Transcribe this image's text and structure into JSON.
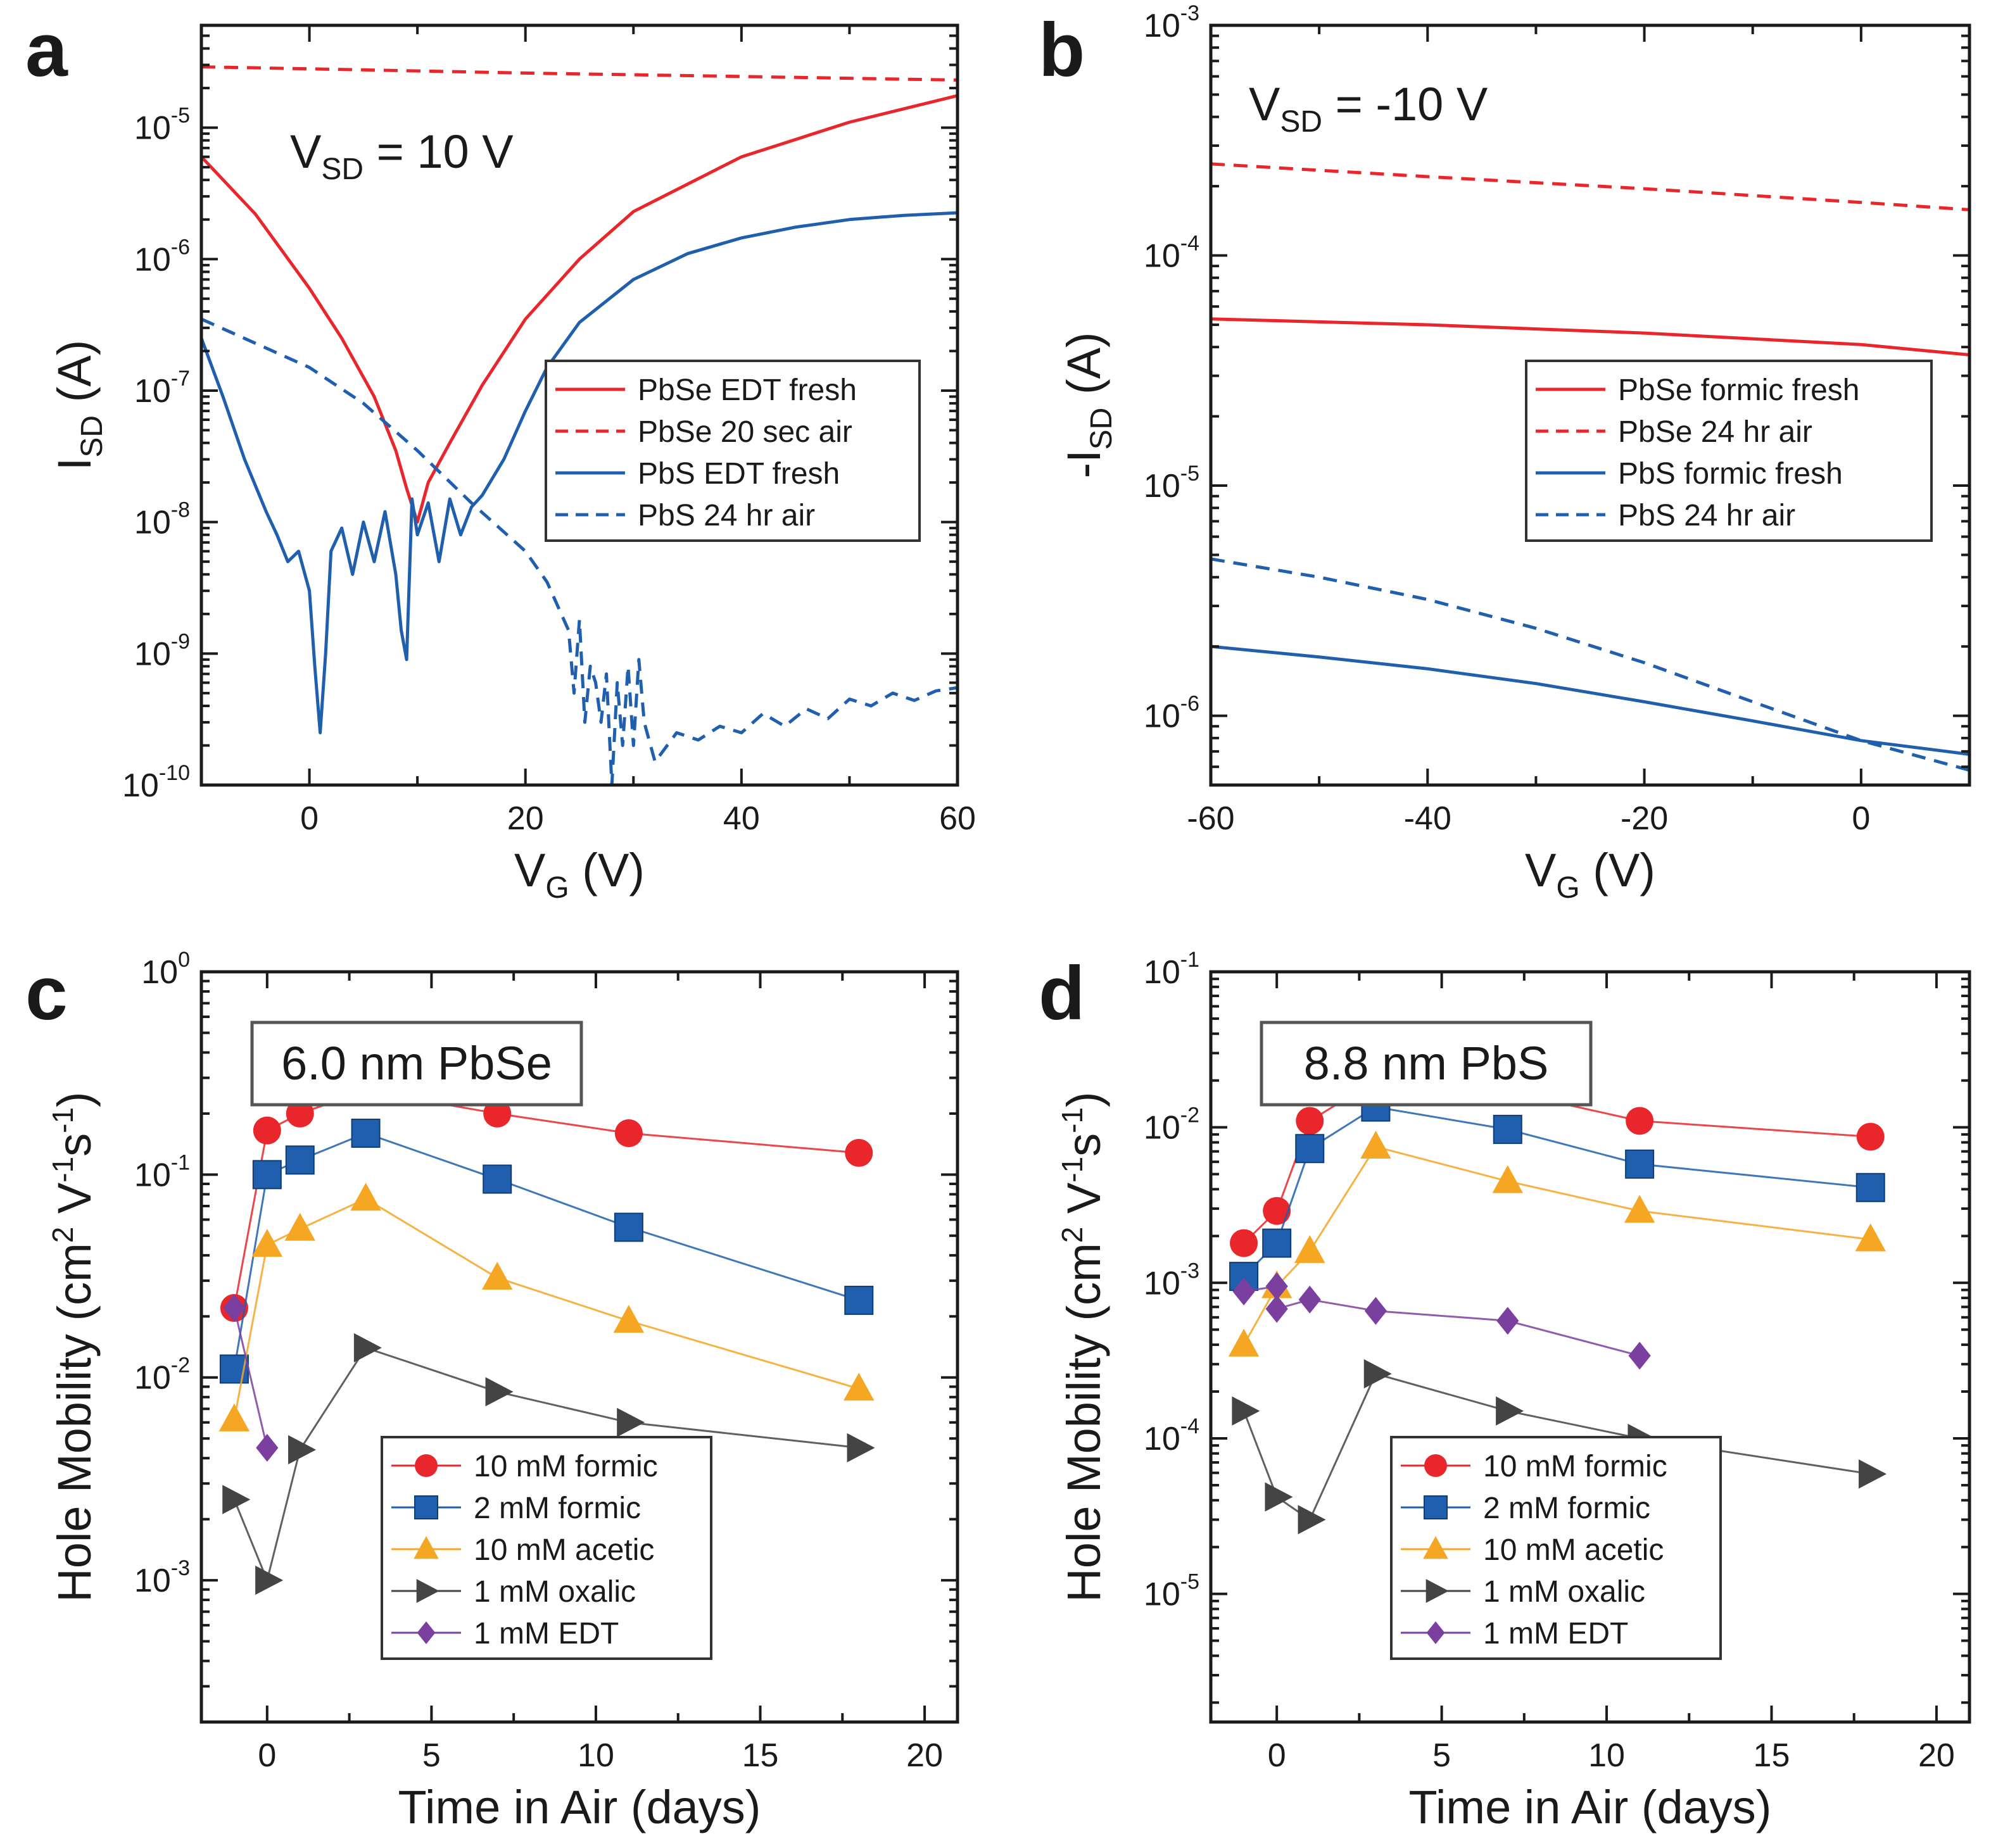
{
  "chart_data": [
    {
      "panel": "a",
      "type": "line",
      "annotation": {
        "main": "V",
        "sub": "SD",
        "rest": " = 10 V"
      },
      "xlabel": {
        "main": "V",
        "sub": "G",
        "rest": " (V)"
      },
      "ylabel": {
        "main": "I",
        "sub": "SD",
        "rest": " (A)"
      },
      "xscale": "linear",
      "yscale": "log",
      "xlim": [
        -10,
        60
      ],
      "ylim": [
        1e-10,
        6e-05
      ],
      "xticks": [
        0,
        20,
        40,
        60
      ],
      "yticks": [
        -10,
        -9,
        -8,
        -7,
        -6,
        -5
      ],
      "legend_position": "center-right",
      "series": [
        {
          "name": "PbSe EDT fresh",
          "color": "#e8262b",
          "style": "solid",
          "x": [
            -10,
            -5,
            0,
            3,
            6,
            8,
            9,
            10,
            11,
            13,
            16,
            20,
            25,
            30,
            40,
            50,
            60
          ],
          "y": [
            6e-06,
            2.2e-06,
            6e-07,
            2.5e-07,
            9e-08,
            3.5e-08,
            1.8e-08,
            1e-08,
            2e-08,
            4e-08,
            1.1e-07,
            3.5e-07,
            1e-06,
            2.3e-06,
            6e-06,
            1.1e-05,
            1.75e-05
          ]
        },
        {
          "name": "PbSe 20 sec air",
          "color": "#e8262b",
          "style": "dashed",
          "x": [
            -10,
            0,
            20,
            40,
            60
          ],
          "y": [
            2.9e-05,
            2.8e-05,
            2.6e-05,
            2.45e-05,
            2.3e-05
          ]
        },
        {
          "name": "PbS EDT fresh",
          "color": "#1f5fad",
          "style": "solid",
          "x": [
            -10,
            -8,
            -6,
            -4,
            -3,
            -2,
            -1,
            0,
            0.5,
            1,
            1.5,
            2,
            3,
            4,
            5,
            6,
            7,
            8,
            8.5,
            9,
            9.5,
            10,
            11,
            12,
            13,
            14,
            15,
            16,
            18,
            20,
            22,
            25,
            30,
            35,
            40,
            45,
            50,
            55,
            60
          ],
          "y": [
            2.5e-07,
            9e-08,
            3e-08,
            1.2e-08,
            8e-09,
            5e-09,
            6e-09,
            3e-09,
            8e-10,
            2.5e-10,
            1e-09,
            6e-09,
            9e-09,
            4e-09,
            1e-08,
            5e-09,
            1.2e-08,
            4e-09,
            1.5e-09,
            9e-10,
            1.5e-08,
            8e-09,
            1.4e-08,
            5e-09,
            1.5e-08,
            8e-09,
            1.3e-08,
            1.6e-08,
            3e-08,
            7e-08,
            1.5e-07,
            3.3e-07,
            7e-07,
            1.1e-06,
            1.45e-06,
            1.75e-06,
            2e-06,
            2.15e-06,
            2.25e-06
          ]
        },
        {
          "name": "PbS 24 hr air",
          "color": "#1f5fad",
          "style": "dashed",
          "x": [
            -10,
            0,
            5,
            10,
            15,
            20,
            22,
            24,
            24.5,
            25,
            25.5,
            26,
            26.5,
            27,
            27.5,
            28,
            28.5,
            29,
            29.5,
            30,
            30.5,
            31,
            32,
            34,
            36,
            38,
            40,
            42,
            44,
            46,
            48,
            50,
            52,
            54,
            56,
            58,
            60
          ],
          "y": [
            3.5e-07,
            1.5e-07,
            8e-08,
            3.5e-08,
            1.4e-08,
            6e-09,
            3.5e-09,
            1.5e-09,
            5e-10,
            1.8e-09,
            3e-10,
            8e-10,
            6e-10,
            3e-10,
            7e-10,
            1e-10,
            6e-10,
            2e-10,
            8e-10,
            2e-10,
            9e-10,
            3e-10,
            1.5e-10,
            2.5e-10,
            2.2e-10,
            2.8e-10,
            2.5e-10,
            3.5e-10,
            2.8e-10,
            3.8e-10,
            3.2e-10,
            4.5e-10,
            4e-10,
            5e-10,
            4.4e-10,
            5.2e-10,
            5.5e-10
          ]
        }
      ]
    },
    {
      "panel": "b",
      "type": "line",
      "annotation": {
        "main": "V",
        "sub": "SD",
        "rest": " = -10 V"
      },
      "xlabel": {
        "main": "V",
        "sub": "G",
        "rest": " (V)"
      },
      "ylabel": {
        "main": "-I",
        "sub": "SD",
        "rest": " (A)"
      },
      "xscale": "linear",
      "yscale": "log",
      "xlim": [
        -60,
        10
      ],
      "ylim": [
        5e-07,
        0.001
      ],
      "xticks": [
        -60,
        -40,
        -20,
        0
      ],
      "yticks": [
        -6,
        -5,
        -4,
        -3
      ],
      "legend_position": "center-right",
      "series": [
        {
          "name": "PbSe formic fresh",
          "color": "#e8262b",
          "style": "solid",
          "x": [
            -60,
            -40,
            -20,
            0,
            10
          ],
          "y": [
            5.3e-05,
            5e-05,
            4.6e-05,
            4.1e-05,
            3.7e-05
          ]
        },
        {
          "name": "PbSe 24 hr air",
          "color": "#e8262b",
          "style": "dashed",
          "x": [
            -60,
            -40,
            -20,
            0,
            10
          ],
          "y": [
            0.00025,
            0.00022,
            0.000195,
            0.00017,
            0.000158
          ]
        },
        {
          "name": "PbS formic fresh",
          "color": "#1f5fad",
          "style": "solid",
          "x": [
            -60,
            -50,
            -40,
            -30,
            -20,
            -10,
            0,
            10
          ],
          "y": [
            2e-06,
            1.8e-06,
            1.6e-06,
            1.38e-06,
            1.15e-06,
            9.5e-07,
            7.8e-07,
            6.8e-07
          ]
        },
        {
          "name": "PbS 24 hr air",
          "color": "#1f5fad",
          "style": "dashed",
          "x": [
            -60,
            -50,
            -40,
            -30,
            -20,
            -10,
            0,
            10
          ],
          "y": [
            4.8e-06,
            4e-06,
            3.2e-06,
            2.4e-06,
            1.7e-06,
            1.15e-06,
            7.8e-07,
            5.8e-07
          ]
        }
      ]
    },
    {
      "panel": "c",
      "type": "scatter",
      "annotation_box": "6.0 nm PbSe",
      "xlabel": {
        "main": "Time in Air (days)",
        "sub": "",
        "rest": ""
      },
      "ylabel": {
        "main": "Hole Mobility (cm",
        "sup1": "2",
        "mid": " V",
        "sup2": "-1",
        "mid2": "s",
        "sup3": "-1",
        "end": ")"
      },
      "xscale": "linear",
      "yscale": "log",
      "xlim": [
        -2,
        21
      ],
      "ylim": [
        0.0002,
        1
      ],
      "xticks": [
        0,
        5,
        10,
        15,
        20
      ],
      "yticks": [
        -3,
        -2,
        -1,
        0
      ],
      "legend_position": "bottom-center",
      "series": [
        {
          "name": "10 mM formic",
          "color": "#e8262b",
          "marker": "circle",
          "x": [
            -1,
            0,
            1,
            3,
            7,
            11,
            18
          ],
          "y": [
            0.022,
            0.165,
            0.2,
            0.26,
            0.2,
            0.16,
            0.128
          ]
        },
        {
          "name": "2 mM formic",
          "color": "#1f5fad",
          "marker": "square",
          "x": [
            -1,
            0,
            1,
            3,
            7,
            11,
            18
          ],
          "y": [
            0.011,
            0.1,
            0.118,
            0.16,
            0.095,
            0.055,
            0.024
          ]
        },
        {
          "name": "10 mM acetic",
          "color": "#f5a623",
          "marker": "triangle-up",
          "x": [
            -1,
            0,
            1,
            3,
            7,
            11,
            18
          ],
          "y": [
            0.0062,
            0.045,
            0.054,
            0.076,
            0.031,
            0.019,
            0.0088
          ]
        },
        {
          "name": "1 mM oxalic",
          "color": "#444444",
          "marker": "triangle-right",
          "x": [
            -1,
            0,
            1,
            3,
            7,
            11,
            18
          ],
          "y": [
            0.0025,
            0.001,
            0.0044,
            0.014,
            0.0085,
            0.006,
            0.0045
          ]
        },
        {
          "name": "1 mM EDT",
          "color": "#7b3fa0",
          "marker": "diamond",
          "x": [
            -1,
            0
          ],
          "y": [
            0.022,
            0.0045
          ]
        }
      ]
    },
    {
      "panel": "d",
      "type": "scatter",
      "annotation_box": "8.8 nm PbS",
      "xlabel": {
        "main": "Time in Air (days)",
        "sub": "",
        "rest": ""
      },
      "ylabel": {
        "main": "Hole Mobility (cm",
        "sup1": "2",
        "mid": " V",
        "sup2": "-1",
        "mid2": "s",
        "sup3": "-1",
        "end": ")"
      },
      "xscale": "linear",
      "yscale": "log",
      "xlim": [
        -2,
        21
      ],
      "ylim": [
        1.5e-06,
        0.1
      ],
      "xticks": [
        0,
        5,
        10,
        15,
        20
      ],
      "yticks": [
        -5,
        -4,
        -3,
        -2,
        -1
      ],
      "legend_position": "bottom-center",
      "series": [
        {
          "name": "10 mM formic",
          "color": "#e8262b",
          "marker": "circle",
          "x": [
            -1,
            0,
            1,
            3,
            7,
            11,
            18
          ],
          "y": [
            0.0018,
            0.0029,
            0.011,
            0.02,
            0.017,
            0.011,
            0.0087
          ]
        },
        {
          "name": "2 mM formic",
          "color": "#1f5fad",
          "marker": "square",
          "x": [
            -1,
            0,
            1,
            3,
            7,
            11,
            18
          ],
          "y": [
            0.0011,
            0.0018,
            0.0073,
            0.0135,
            0.0097,
            0.0058,
            0.0041
          ]
        },
        {
          "name": "10 mM acetic",
          "color": "#f5a623",
          "marker": "triangle-up",
          "x": [
            -1,
            0,
            1,
            3,
            7,
            11,
            18
          ],
          "y": [
            0.0004,
            0.00095,
            0.0016,
            0.0075,
            0.0045,
            0.0029,
            0.0019
          ]
        },
        {
          "name": "1 mM oxalic",
          "color": "#444444",
          "marker": "triangle-right",
          "x": [
            -1,
            0,
            1,
            3,
            7,
            11,
            18
          ],
          "y": [
            0.00015,
            4.2e-05,
            3e-05,
            0.00026,
            0.00015,
            0.0001,
            5.9e-05
          ]
        },
        {
          "name": "1 mM EDT",
          "color": "#7b3fa0",
          "marker": "diamond",
          "x": [
            -1,
            0,
            0,
            1,
            3,
            7,
            11
          ],
          "y": [
            0.00088,
            0.00095,
            0.00068,
            0.00078,
            0.00066,
            0.00057,
            0.00034
          ]
        }
      ]
    }
  ]
}
